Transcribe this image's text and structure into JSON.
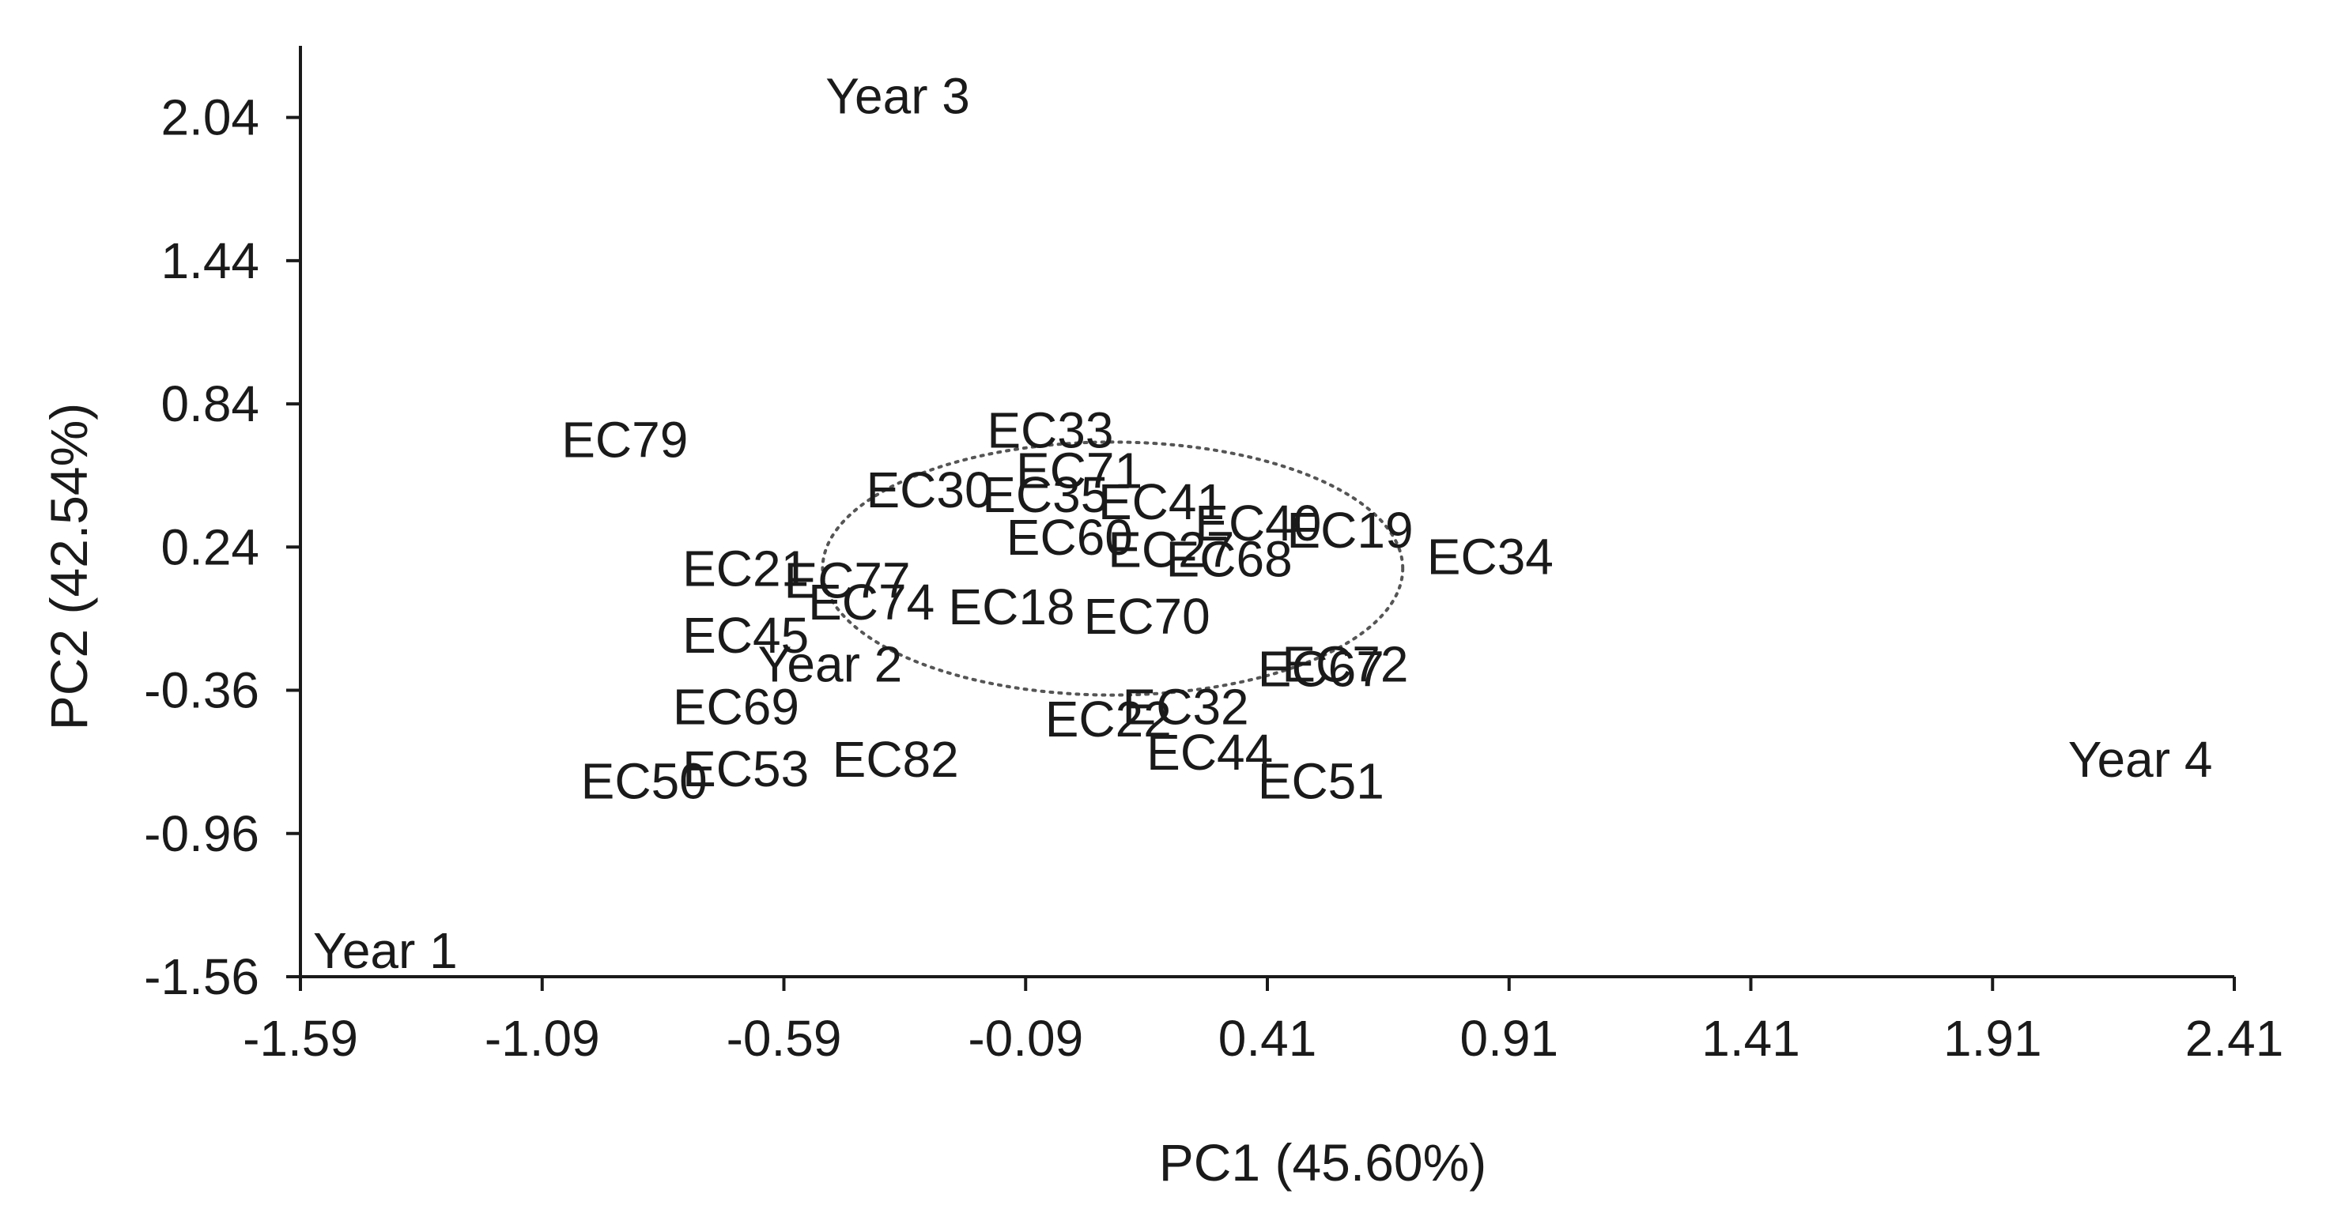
{
  "chart_data": {
    "type": "scatter",
    "title": "",
    "xlabel": "PC1 (45.60%)",
    "ylabel": "PC2 (42.54%)",
    "xlim": [
      -1.59,
      2.41
    ],
    "ylim": [
      -1.56,
      2.34
    ],
    "xticks": [
      "-1.59",
      "-1.09",
      "-0.59",
      "-0.09",
      "0.41",
      "0.91",
      "1.41",
      "1.91",
      "2.41"
    ],
    "yticks": [
      "-1.56",
      "-0.96",
      "-0.36",
      "0.24",
      "0.84",
      "1.44",
      "2.04"
    ],
    "grid": false,
    "ellipse": {
      "center": [
        0.09,
        0.15
      ],
      "semi_axes": [
        0.6,
        0.53
      ],
      "style": "dotted"
    },
    "year_labels": [
      {
        "label": "Year 1",
        "x": -1.59,
        "y": -1.45
      },
      {
        "label": "Year 2",
        "x": -0.67,
        "y": -0.25
      },
      {
        "label": "Year 3",
        "x": -0.53,
        "y": 2.13
      },
      {
        "label": "Year 4",
        "x": 2.04,
        "y": -0.65
      }
    ],
    "points": [
      {
        "label": "EC79",
        "x": -1.05,
        "y": 0.69
      },
      {
        "label": "EC33",
        "x": -0.17,
        "y": 0.73
      },
      {
        "label": "EC71",
        "x": -0.11,
        "y": 0.56
      },
      {
        "label": "EC30",
        "x": -0.42,
        "y": 0.48
      },
      {
        "label": "EC35",
        "x": -0.18,
        "y": 0.46
      },
      {
        "label": "EC41",
        "x": 0.06,
        "y": 0.43
      },
      {
        "label": "EC40",
        "x": 0.26,
        "y": 0.34
      },
      {
        "label": "EC19",
        "x": 0.45,
        "y": 0.31
      },
      {
        "label": "EC34",
        "x": 0.74,
        "y": 0.2
      },
      {
        "label": "EC68",
        "x": 0.2,
        "y": 0.19
      },
      {
        "label": "EC27",
        "x": 0.08,
        "y": 0.23
      },
      {
        "label": "EC60",
        "x": -0.13,
        "y": 0.28
      },
      {
        "label": "EC21",
        "x": -0.8,
        "y": 0.15
      },
      {
        "label": "EC77",
        "x": -0.59,
        "y": 0.1
      },
      {
        "label": "EC74",
        "x": -0.54,
        "y": 0.01
      },
      {
        "label": "EC18",
        "x": -0.25,
        "y": -0.01
      },
      {
        "label": "EC70",
        "x": 0.03,
        "y": -0.05
      },
      {
        "label": "EC45",
        "x": -0.8,
        "y": -0.13
      },
      {
        "label": "EC72",
        "x": 0.44,
        "y": -0.25
      },
      {
        "label": "EC67",
        "x": 0.39,
        "y": -0.27
      },
      {
        "label": "EC69",
        "x": -0.82,
        "y": -0.43
      },
      {
        "label": "EC32",
        "x": 0.11,
        "y": -0.43
      },
      {
        "label": "EC22",
        "x": -0.05,
        "y": -0.48
      },
      {
        "label": "EC82",
        "x": -0.49,
        "y": -0.65
      },
      {
        "label": "EC44",
        "x": 0.16,
        "y": -0.62
      },
      {
        "label": "EC51",
        "x": 0.39,
        "y": -0.74
      },
      {
        "label": "EC50",
        "x": -1.01,
        "y": -0.74
      },
      {
        "label": "EC53",
        "x": -0.8,
        "y": -0.69
      }
    ]
  }
}
